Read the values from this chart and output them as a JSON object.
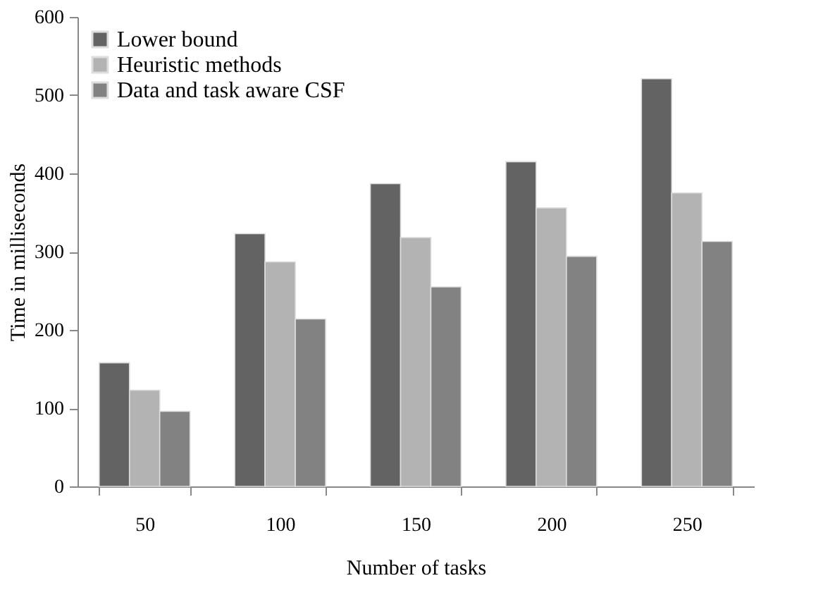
{
  "chart_data": {
    "type": "bar",
    "xlabel": "Number of tasks",
    "ylabel": "Time in milliseconds",
    "categories": [
      "50",
      "100",
      "150",
      "200",
      "250"
    ],
    "series": [
      {
        "name": "Lower bound",
        "color": "#636363",
        "values": [
          158,
          323,
          387,
          415,
          521
        ]
      },
      {
        "name": "Heuristic methods",
        "color": "#b3b3b3",
        "values": [
          123,
          287,
          318,
          356,
          375
        ]
      },
      {
        "name": "Data and task aware CSF",
        "color": "#828282",
        "values": [
          96,
          214,
          255,
          294,
          313
        ]
      }
    ],
    "ylim": [
      0,
      600
    ],
    "yticks": [
      0,
      100,
      200,
      300,
      400,
      500,
      600
    ],
    "grid": false,
    "legend": "top left"
  }
}
